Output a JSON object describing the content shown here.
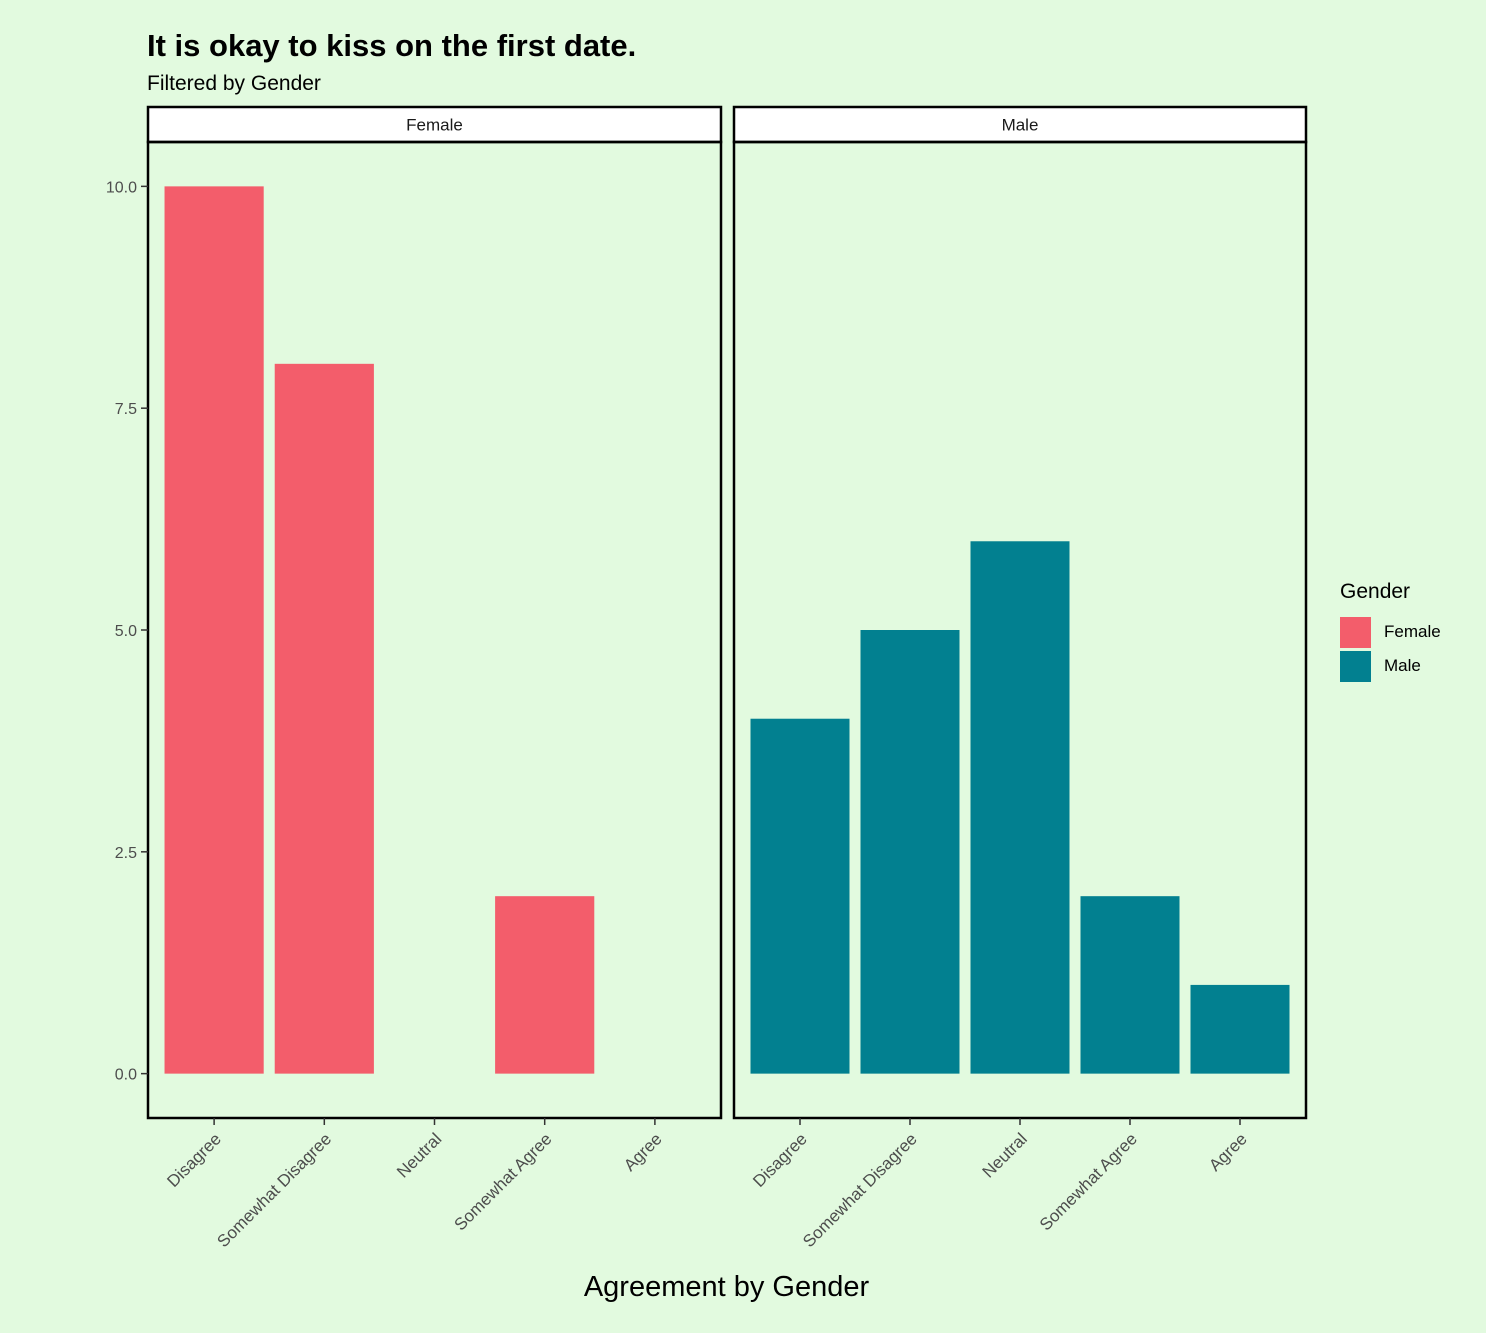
{
  "chart_data": {
    "type": "bar",
    "title": "It is okay to kiss on the first date.",
    "subtitle": "Filtered by Gender",
    "xlabel": "Agreement by Gender",
    "ylabel": "",
    "ylim": [
      -0.5,
      10.5
    ],
    "yticks": [
      0.0,
      2.5,
      5.0,
      7.5,
      10.0
    ],
    "ytick_labels": [
      "0.0",
      "2.5",
      "5.0",
      "7.5",
      "10.0"
    ],
    "categories": [
      "Disagree",
      "Somewhat Disagree",
      "Neutral",
      "Somewhat Agree",
      "Agree"
    ],
    "facets": [
      {
        "label": "Female",
        "series": "Female",
        "values": [
          10,
          8,
          0,
          2,
          0
        ]
      },
      {
        "label": "Male",
        "series": "Male",
        "values": [
          4,
          5,
          6,
          2,
          1
        ]
      }
    ],
    "legend": {
      "title": "Gender",
      "position": "right",
      "items": [
        {
          "name": "Female",
          "color": "#F35D6B"
        },
        {
          "name": "Male",
          "color": "#028090"
        }
      ]
    },
    "grid": false
  }
}
